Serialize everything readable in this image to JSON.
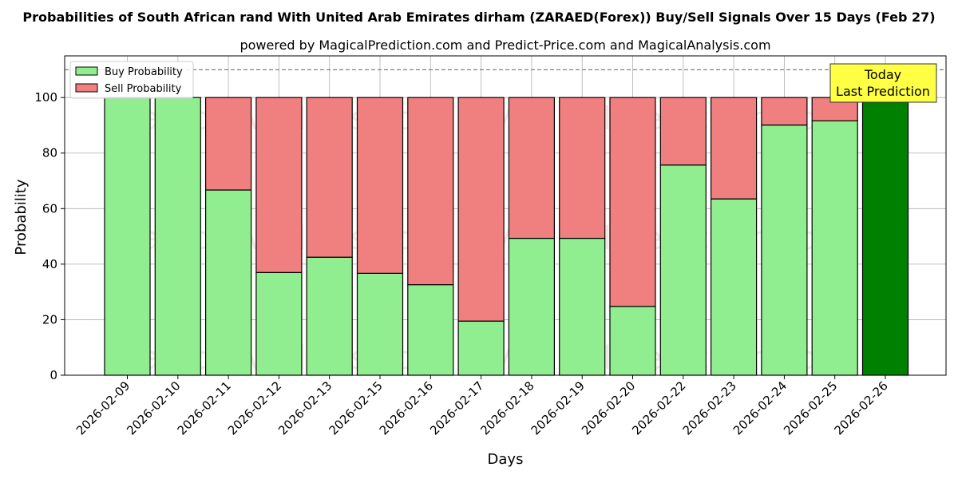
{
  "chart_data": {
    "type": "bar",
    "stacked": true,
    "title": "Probabilities of South African rand With United Arab Emirates dirham (ZARAED(Forex)) Buy/Sell Signals Over 15 Days (Feb 27)",
    "subtitle": "powered by MagicalPrediction.com and Predict-Price.com and MagicalAnalysis.com",
    "xlabel": "Days",
    "ylabel": "Probability",
    "ylim": [
      0,
      115
    ],
    "yticks": [
      0,
      20,
      40,
      60,
      80,
      100
    ],
    "grid": true,
    "legend_position": "top-left",
    "reference_line": 110,
    "categories": [
      "2026-02-09",
      "2026-02-10",
      "2026-02-11",
      "2026-02-12",
      "2026-02-13",
      "2026-02-15",
      "2026-02-16",
      "2026-02-17",
      "2026-02-18",
      "2026-02-19",
      "2026-02-20",
      "2026-02-22",
      "2026-02-23",
      "2026-02-24",
      "2026-02-25",
      "2026-02-26"
    ],
    "series": [
      {
        "name": "Buy Probability",
        "color": "#90ee90",
        "values": [
          100,
          100,
          66.7,
          37,
          42.5,
          36.7,
          32.6,
          19.5,
          49.3,
          49.3,
          24.8,
          75.7,
          63.5,
          90.1,
          91.6,
          100
        ]
      },
      {
        "name": "Sell Probability",
        "color": "#f08080",
        "values": [
          0,
          0,
          33.3,
          63,
          57.5,
          63.3,
          67.4,
          80.5,
          50.7,
          50.7,
          75.2,
          24.3,
          36.5,
          9.9,
          8.4,
          0
        ]
      }
    ],
    "highlight": {
      "index": 15,
      "color": "#008000",
      "label_line1": "Today",
      "label_line2": "Last Prediction",
      "label_bg": "#ffff44"
    },
    "watermarks": [
      "MagicalAnalysis.com",
      "MagicalPrediction.com"
    ]
  }
}
